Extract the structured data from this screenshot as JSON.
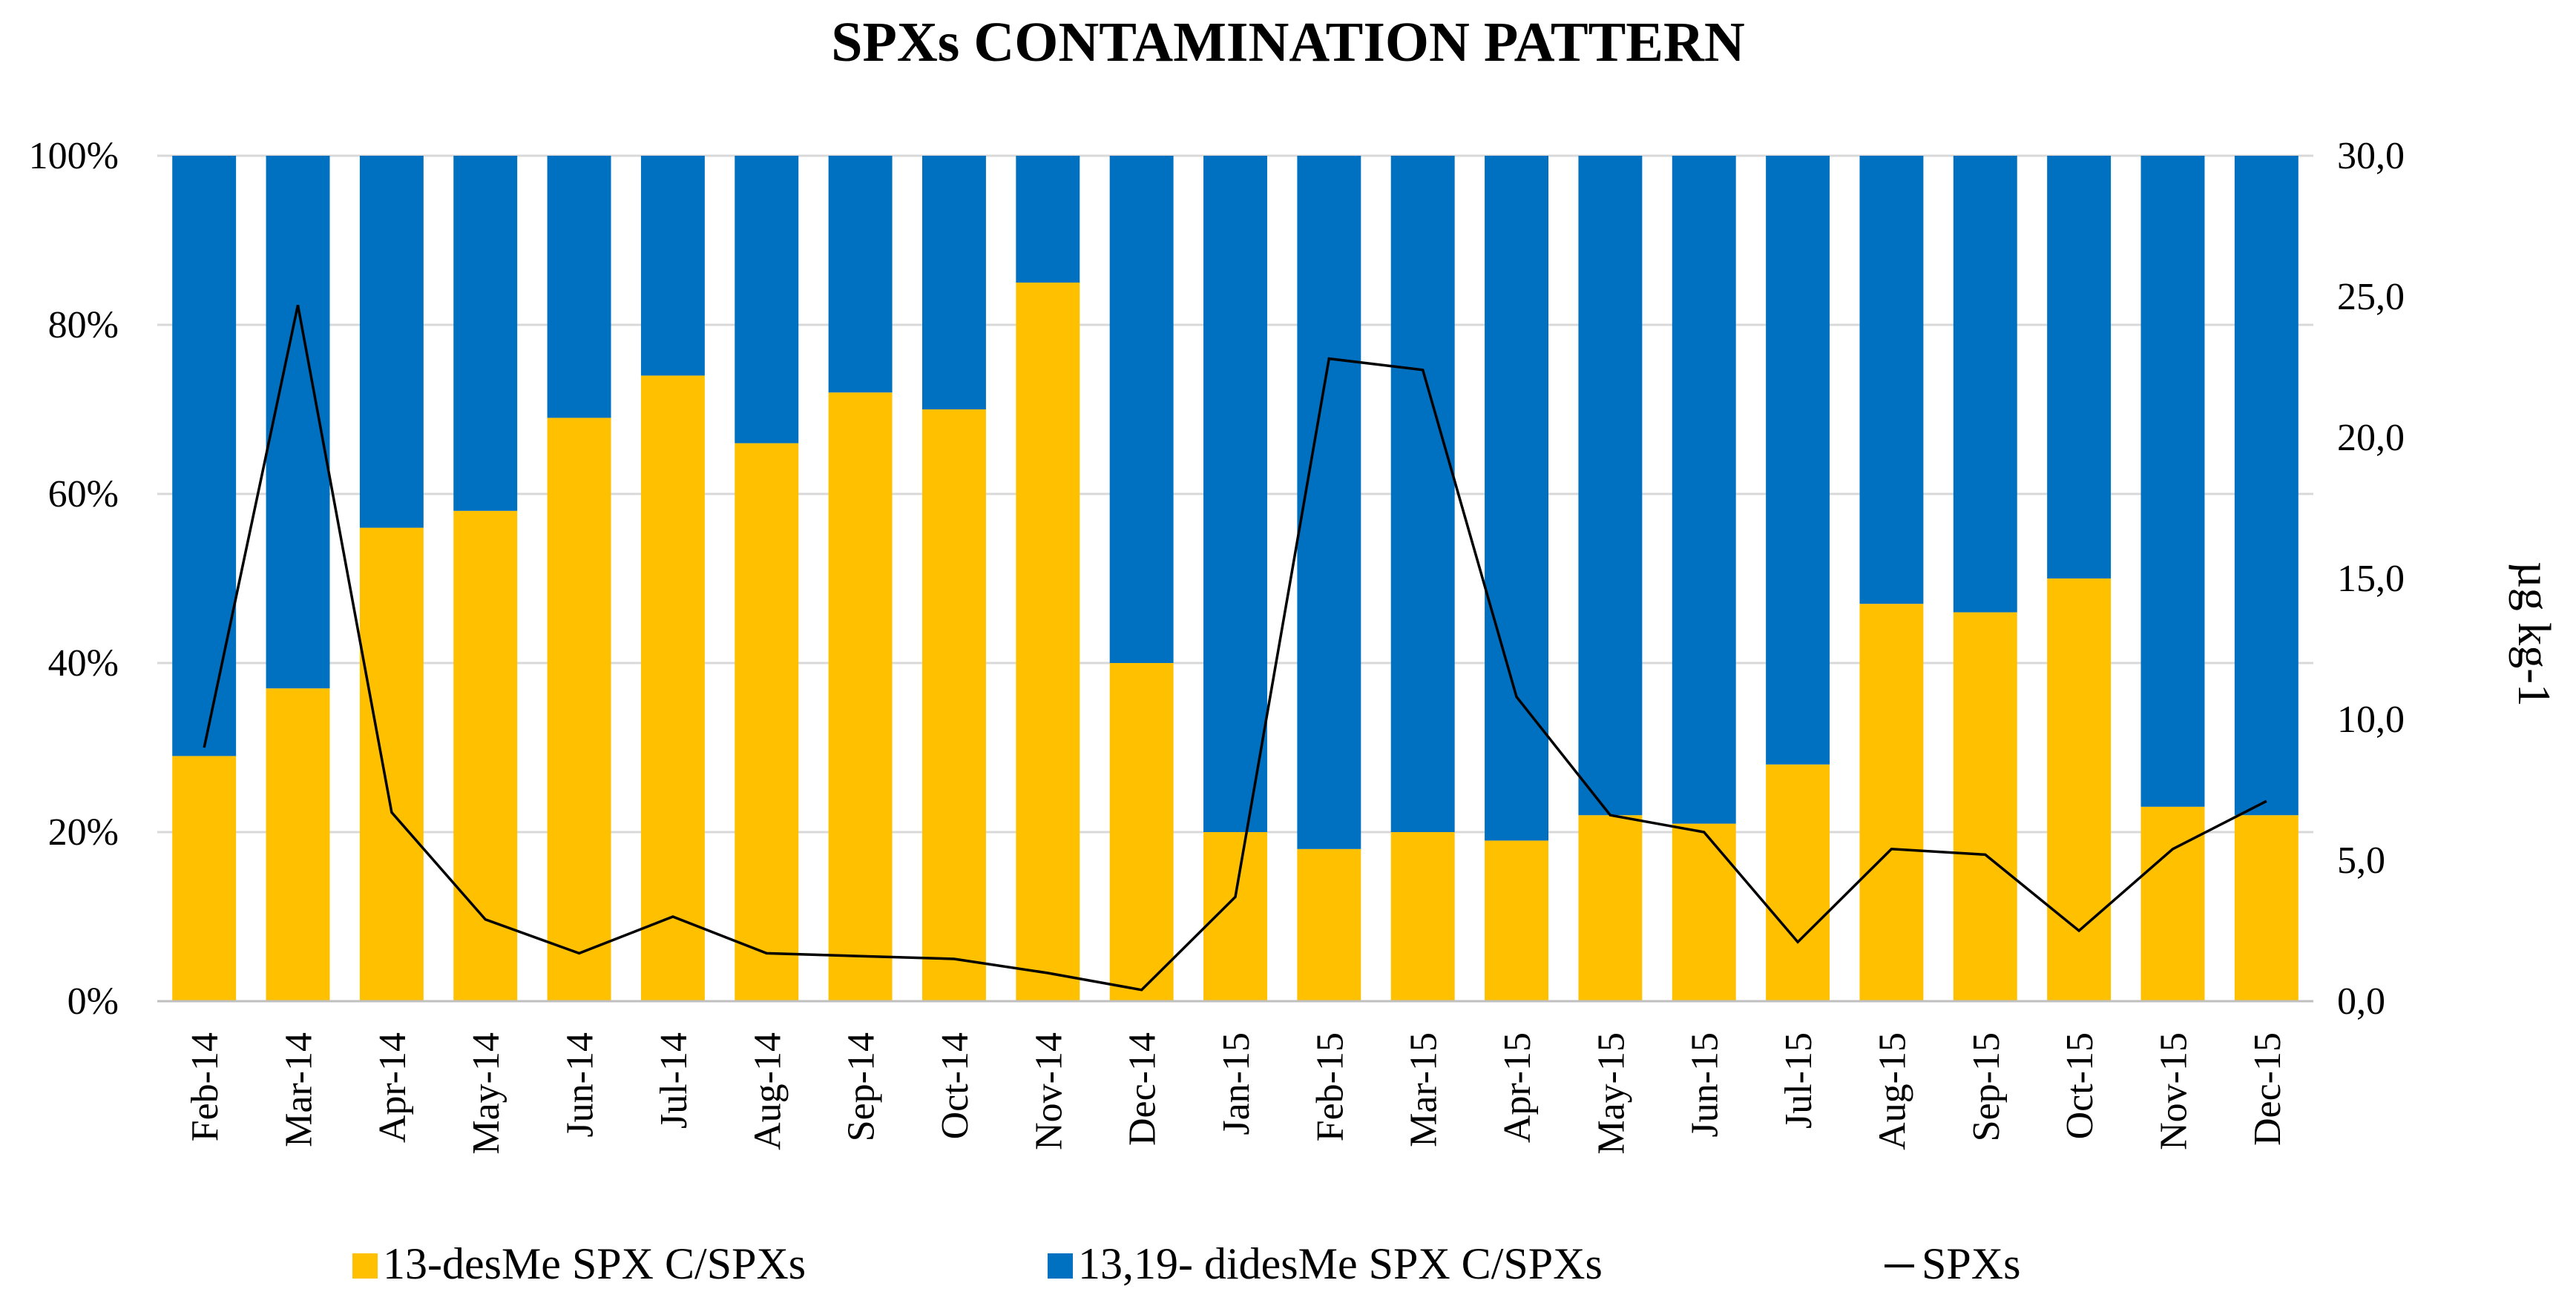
{
  "chart_data": {
    "type": "bar",
    "stacked_percent": true,
    "title": "SPXs CONTAMINATION PATTERN",
    "categories": [
      "Feb-14",
      "Mar-14",
      "Apr-14",
      "May-14",
      "Jun-14",
      "Jul-14",
      "Aug-14",
      "Sep-14",
      "Oct-14",
      "Nov-14",
      "Dec-14",
      "Jan-15",
      "Feb-15",
      "Mar-15",
      "Apr-15",
      "May-15",
      "Jun-15",
      "Jul-15",
      "Aug-15",
      "Sep-15",
      "Oct-15",
      "Nov-15",
      "Dec-15"
    ],
    "series": [
      {
        "name": "13-desMe SPX C/SPXs",
        "color": "#FFC000",
        "axis": "left",
        "values": [
          29,
          37,
          56,
          58,
          69,
          74,
          66,
          72,
          70,
          85,
          40,
          20,
          18,
          20,
          19,
          22,
          21,
          28,
          47,
          46,
          50,
          23,
          22
        ]
      },
      {
        "name": "13,19- didesMe SPX C/SPXs",
        "color": "#0070C0",
        "axis": "left",
        "values": [
          71,
          63,
          44,
          42,
          31,
          26,
          34,
          28,
          30,
          15,
          60,
          80,
          82,
          80,
          81,
          78,
          79,
          72,
          53,
          54,
          50,
          77,
          78
        ]
      },
      {
        "name": "SPXs",
        "type": "line",
        "color": "#000000",
        "axis": "right",
        "values": [
          9.0,
          24.7,
          6.7,
          2.9,
          1.7,
          3.0,
          1.7,
          1.6,
          1.5,
          1.0,
          0.4,
          3.7,
          22.8,
          22.4,
          10.8,
          6.6,
          6.0,
          2.1,
          5.4,
          5.2,
          2.5,
          5.4,
          7.1
        ]
      }
    ],
    "y_left": {
      "ticks": [
        "0%",
        "20%",
        "40%",
        "60%",
        "80%",
        "100%"
      ],
      "ylim": [
        0,
        100
      ]
    },
    "y_right": {
      "label": "µg kg-1",
      "ticks": [
        "0,0",
        "5,0",
        "10,0",
        "15,0",
        "20,0",
        "25,0",
        "30,0"
      ],
      "ylim": [
        0,
        30
      ]
    },
    "grid": true,
    "legend_position": "bottom"
  }
}
